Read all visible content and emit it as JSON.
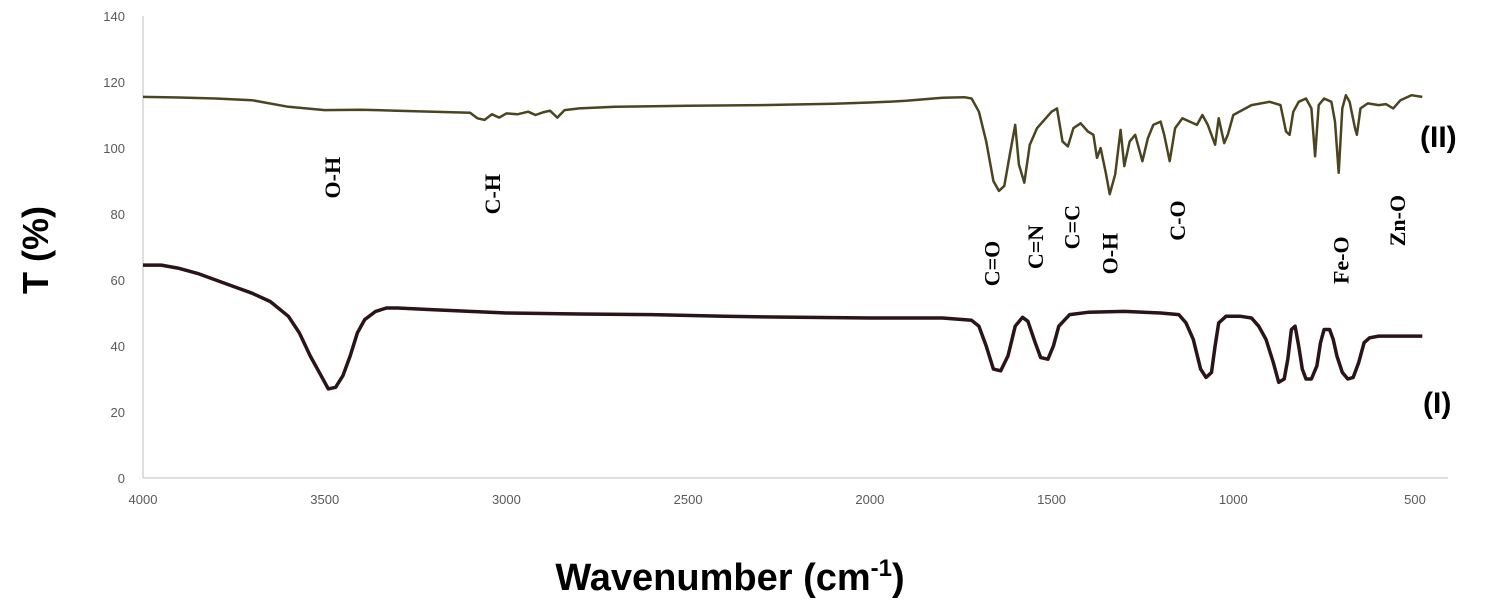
{
  "chart_data": {
    "type": "line",
    "xlabel": "Wavenumber (cm",
    "xlabel_sup": "-1",
    "xlabel_end": ")",
    "ylabel": "T (%)",
    "xlim": [
      4000,
      500
    ],
    "ylim": [
      0,
      140
    ],
    "x_ticks": [
      4000,
      3500,
      3000,
      2500,
      2000,
      1500,
      1000,
      500
    ],
    "y_ticks": [
      0,
      20,
      40,
      60,
      80,
      100,
      120,
      140
    ],
    "grid": false,
    "series": [
      {
        "name": "(II)",
        "color": "#4a4520",
        "points": [
          [
            4000,
            115.5
          ],
          [
            3900,
            115.3
          ],
          [
            3800,
            115
          ],
          [
            3700,
            114.5
          ],
          [
            3600,
            112.5
          ],
          [
            3500,
            111.5
          ],
          [
            3400,
            111.6
          ],
          [
            3300,
            111.3
          ],
          [
            3200,
            111
          ],
          [
            3100,
            110.7
          ],
          [
            3080,
            109
          ],
          [
            3060,
            108.5
          ],
          [
            3040,
            110.2
          ],
          [
            3020,
            109.2
          ],
          [
            3000,
            110.5
          ],
          [
            2970,
            110.2
          ],
          [
            2940,
            111
          ],
          [
            2920,
            110
          ],
          [
            2900,
            110.8
          ],
          [
            2880,
            111.3
          ],
          [
            2860,
            109.2
          ],
          [
            2840,
            111.5
          ],
          [
            2800,
            112
          ],
          [
            2700,
            112.5
          ],
          [
            2500,
            112.8
          ],
          [
            2300,
            113
          ],
          [
            2100,
            113.4
          ],
          [
            2000,
            113.8
          ],
          [
            1950,
            114
          ],
          [
            1900,
            114.3
          ],
          [
            1800,
            115.2
          ],
          [
            1740,
            115.4
          ],
          [
            1720,
            115
          ],
          [
            1700,
            111
          ],
          [
            1680,
            102
          ],
          [
            1660,
            90
          ],
          [
            1645,
            87
          ],
          [
            1630,
            88.5
          ],
          [
            1615,
            98
          ],
          [
            1600,
            107
          ],
          [
            1590,
            95
          ],
          [
            1575,
            89.5
          ],
          [
            1560,
            101
          ],
          [
            1540,
            106
          ],
          [
            1520,
            108.5
          ],
          [
            1500,
            111
          ],
          [
            1485,
            112
          ],
          [
            1470,
            102
          ],
          [
            1455,
            100.5
          ],
          [
            1440,
            106
          ],
          [
            1420,
            107.5
          ],
          [
            1400,
            105
          ],
          [
            1385,
            104
          ],
          [
            1375,
            97
          ],
          [
            1365,
            100
          ],
          [
            1350,
            92
          ],
          [
            1340,
            86
          ],
          [
            1325,
            92
          ],
          [
            1310,
            105.5
          ],
          [
            1300,
            94.5
          ],
          [
            1285,
            102
          ],
          [
            1270,
            104
          ],
          [
            1250,
            96
          ],
          [
            1235,
            103
          ],
          [
            1220,
            107
          ],
          [
            1200,
            108
          ],
          [
            1190,
            104
          ],
          [
            1175,
            96
          ],
          [
            1160,
            106
          ],
          [
            1140,
            109
          ],
          [
            1120,
            108
          ],
          [
            1100,
            107
          ],
          [
            1085,
            110
          ],
          [
            1070,
            107
          ],
          [
            1050,
            101
          ],
          [
            1040,
            109
          ],
          [
            1025,
            101.5
          ],
          [
            1015,
            104
          ],
          [
            1000,
            110
          ],
          [
            950,
            113
          ],
          [
            900,
            114
          ],
          [
            870,
            113
          ],
          [
            855,
            105
          ],
          [
            845,
            104
          ],
          [
            835,
            111
          ],
          [
            820,
            114
          ],
          [
            800,
            115
          ],
          [
            785,
            112
          ],
          [
            775,
            97.5
          ],
          [
            765,
            113
          ],
          [
            750,
            115
          ],
          [
            730,
            114
          ],
          [
            720,
            108
          ],
          [
            710,
            92.5
          ],
          [
            700,
            112
          ],
          [
            690,
            116
          ],
          [
            680,
            114
          ],
          [
            665,
            106
          ],
          [
            660,
            104
          ],
          [
            650,
            112
          ],
          [
            630,
            113.5
          ],
          [
            600,
            113
          ],
          [
            580,
            113.3
          ],
          [
            560,
            112
          ],
          [
            540,
            114.5
          ],
          [
            510,
            116
          ],
          [
            480,
            115.5
          ]
        ]
      },
      {
        "name": "(I)",
        "color": "#2a1418",
        "points": [
          [
            4000,
            64.5
          ],
          [
            3950,
            64.5
          ],
          [
            3900,
            63.5
          ],
          [
            3850,
            62
          ],
          [
            3800,
            60
          ],
          [
            3750,
            58
          ],
          [
            3700,
            56
          ],
          [
            3650,
            53.5
          ],
          [
            3600,
            49
          ],
          [
            3570,
            44
          ],
          [
            3540,
            37
          ],
          [
            3510,
            31
          ],
          [
            3490,
            27
          ],
          [
            3470,
            27.5
          ],
          [
            3450,
            31
          ],
          [
            3430,
            37
          ],
          [
            3410,
            44
          ],
          [
            3390,
            48
          ],
          [
            3360,
            50.5
          ],
          [
            3330,
            51.5
          ],
          [
            3300,
            51.5
          ],
          [
            3200,
            51
          ],
          [
            3000,
            50
          ],
          [
            2800,
            49.7
          ],
          [
            2600,
            49.5
          ],
          [
            2400,
            49
          ],
          [
            2200,
            48.7
          ],
          [
            2000,
            48.5
          ],
          [
            1800,
            48.5
          ],
          [
            1720,
            47.8
          ],
          [
            1700,
            46
          ],
          [
            1680,
            40
          ],
          [
            1660,
            33
          ],
          [
            1640,
            32.5
          ],
          [
            1620,
            37
          ],
          [
            1600,
            46
          ],
          [
            1580,
            48.7
          ],
          [
            1565,
            47.5
          ],
          [
            1545,
            41
          ],
          [
            1530,
            36.5
          ],
          [
            1510,
            36
          ],
          [
            1495,
            40
          ],
          [
            1480,
            46
          ],
          [
            1450,
            49.5
          ],
          [
            1400,
            50.2
          ],
          [
            1300,
            50.5
          ],
          [
            1200,
            50
          ],
          [
            1150,
            49.5
          ],
          [
            1130,
            47
          ],
          [
            1110,
            42
          ],
          [
            1090,
            33
          ],
          [
            1075,
            30.5
          ],
          [
            1060,
            32
          ],
          [
            1050,
            40
          ],
          [
            1040,
            47
          ],
          [
            1020,
            49
          ],
          [
            980,
            49
          ],
          [
            950,
            48.5
          ],
          [
            930,
            46
          ],
          [
            910,
            42
          ],
          [
            890,
            35
          ],
          [
            875,
            29
          ],
          [
            860,
            30
          ],
          [
            850,
            36
          ],
          [
            840,
            45
          ],
          [
            830,
            46
          ],
          [
            820,
            40
          ],
          [
            810,
            33
          ],
          [
            800,
            30
          ],
          [
            785,
            30
          ],
          [
            770,
            34
          ],
          [
            760,
            41
          ],
          [
            750,
            45
          ],
          [
            735,
            45
          ],
          [
            725,
            42
          ],
          [
            715,
            37
          ],
          [
            700,
            32
          ],
          [
            685,
            30
          ],
          [
            670,
            30.5
          ],
          [
            655,
            35
          ],
          [
            640,
            41
          ],
          [
            625,
            42.5
          ],
          [
            600,
            43
          ],
          [
            550,
            43
          ],
          [
            480,
            43
          ]
        ]
      }
    ],
    "annotations": [
      {
        "text": "O-H",
        "x": 3480,
        "y": 91
      },
      {
        "text": "C-H",
        "x": 3040,
        "y": 86
      },
      {
        "text": "C=O",
        "x": 1665,
        "y": 65
      },
      {
        "text": "C=N",
        "x": 1545,
        "y": 70
      },
      {
        "text": "C=C",
        "x": 1445,
        "y": 76
      },
      {
        "text": "O-H",
        "x": 1340,
        "y": 68
      },
      {
        "text": "C-O",
        "x": 1155,
        "y": 78
      },
      {
        "text": "Fe-O",
        "x": 705,
        "y": 66
      },
      {
        "text": "Zn-O",
        "x": 550,
        "y": 78
      }
    ]
  }
}
